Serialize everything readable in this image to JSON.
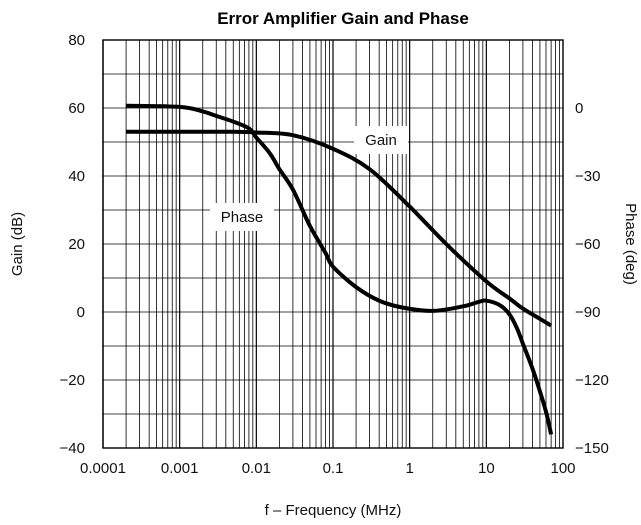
{
  "chart_data": {
    "type": "line",
    "title": "Error Amplifier Gain and Phase",
    "xlabel": "f – Frequency (MHz)",
    "ylabel_left": "Gain (dB)",
    "ylabel_right": "Phase (deg)",
    "x_scale": "log",
    "xlim": [
      0.0001,
      100
    ],
    "ylim_left": [
      -40,
      80
    ],
    "ylim_right": [
      -150,
      30
    ],
    "x_ticks": [
      "0.0001",
      "0.001",
      "0.01",
      "0.1",
      "1",
      "10",
      "100"
    ],
    "y_left_ticks": [
      "80",
      "60",
      "40",
      "20",
      "0",
      "−20",
      "−40"
    ],
    "y_right_ticks": [
      "0",
      "−30",
      "−60",
      "−90",
      "−120",
      "−150"
    ],
    "grid": true,
    "annotations": [
      "Gain",
      "Phase"
    ],
    "series": [
      {
        "axis": "left",
        "x": [
          0.0002,
          0.001,
          0.005,
          0.01,
          0.03,
          0.1,
          0.3,
          1,
          3,
          10,
          20,
          30,
          50,
          70
        ],
        "values": [
          53,
          53,
          53,
          52.8,
          52,
          48,
          42,
          31,
          20,
          9,
          4,
          1,
          -2,
          -4
        ]
      },
      {
        "axis": "right",
        "x": [
          0.0002,
          0.001,
          0.002,
          0.003,
          0.005,
          0.008,
          0.01,
          0.015,
          0.02,
          0.03,
          0.05,
          0.08,
          0.1,
          0.2,
          0.4,
          0.8,
          2,
          5,
          8,
          10,
          15,
          20,
          25,
          30,
          40,
          50,
          60,
          70
        ],
        "values": [
          1,
          0.5,
          -1.5,
          -3.5,
          -6,
          -9,
          -13,
          -20,
          -27,
          -36,
          -52,
          -64,
          -70,
          -79,
          -85,
          -88,
          -89.5,
          -87.5,
          -85.5,
          -85,
          -87,
          -91,
          -97,
          -104,
          -115,
          -125,
          -134,
          -144
        ]
      }
    ]
  }
}
